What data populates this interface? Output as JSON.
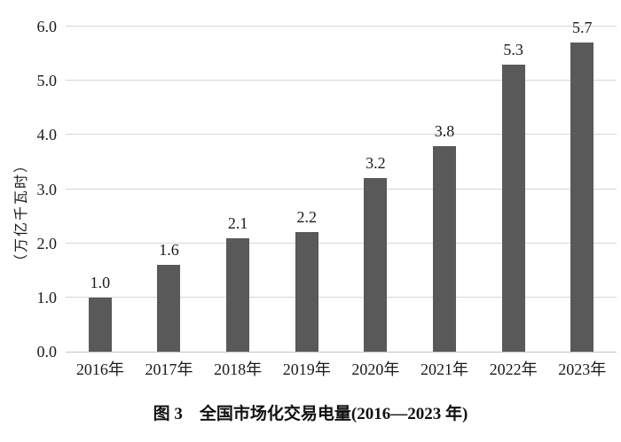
{
  "chart_data": {
    "type": "bar",
    "categories": [
      "2016年",
      "2017年",
      "2018年",
      "2019年",
      "2020年",
      "2021年",
      "2022年",
      "2023年"
    ],
    "values": [
      1.0,
      1.6,
      2.1,
      2.2,
      3.2,
      3.8,
      5.3,
      5.7
    ],
    "value_labels": [
      "1.0",
      "1.6",
      "2.1",
      "2.2",
      "3.2",
      "3.8",
      "5.3",
      "5.7"
    ],
    "title": "图 3　全国市场化交易电量(2016—2023 年)",
    "xlabel": "",
    "ylabel": "（万亿千瓦时）",
    "ylim": [
      0,
      6
    ],
    "yticks": [
      "0.0",
      "1.0",
      "2.0",
      "3.0",
      "4.0",
      "5.0",
      "6.0"
    ],
    "ytick_values": [
      0,
      1,
      2,
      3,
      4,
      5,
      6
    ],
    "grid": "horizontal",
    "legend_position": "none",
    "bar_color": "#595959",
    "gridline_color": "#d6d6d6",
    "axis_line_color": "#c2c2c2",
    "background_color": "#ffffff"
  },
  "caption": {
    "text": "图 3　全国市场化交易电量(2016—2023 年)"
  }
}
